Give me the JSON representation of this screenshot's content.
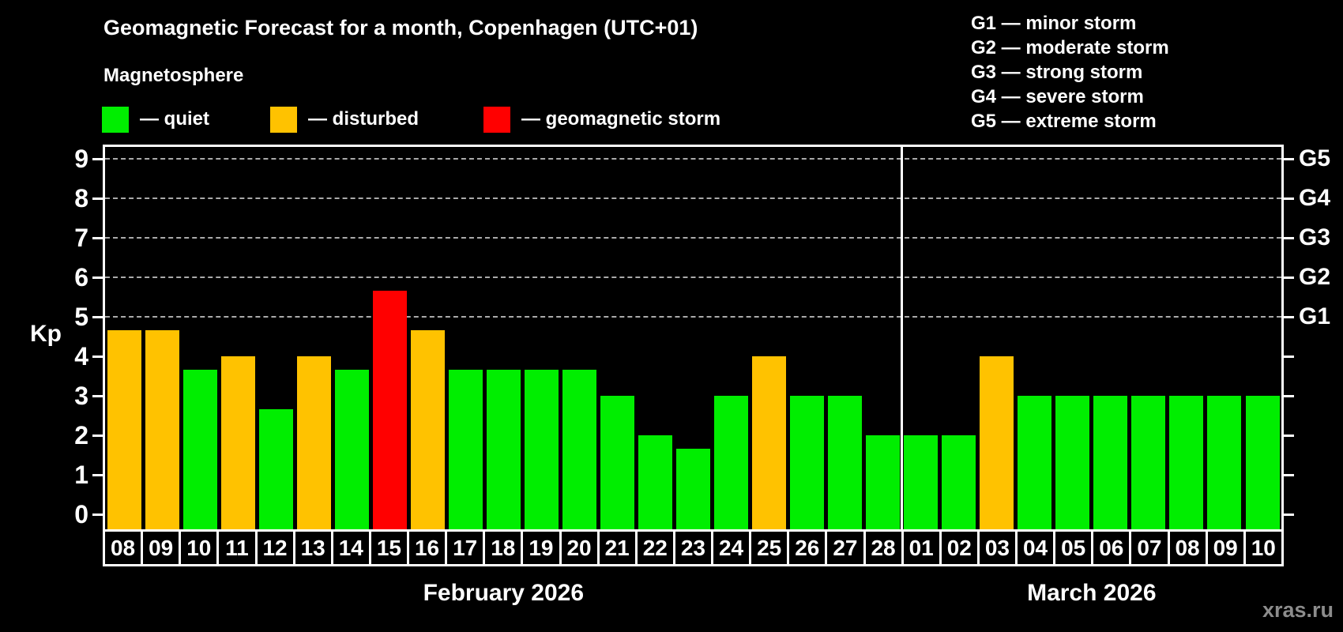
{
  "title": "Geomagnetic Forecast for a month, Copenhagen (UTC+01)",
  "subtitle": "Magnetosphere",
  "legend": {
    "items": [
      {
        "key": "quiet",
        "label": "— quiet"
      },
      {
        "key": "disturbed",
        "label": "— disturbed"
      },
      {
        "key": "storm",
        "label": "— geomagnetic storm"
      }
    ]
  },
  "g_scale_legend": [
    "G1 — minor storm",
    "G2 — moderate storm",
    "G3 — strong storm",
    "G4 — severe storm",
    "G5 — extreme storm"
  ],
  "watermark": "xras.ru",
  "colors": {
    "quiet": "#00ee00",
    "disturbed": "#ffc200",
    "storm": "#ff0000",
    "grid": "#aaaaaa",
    "axis": "#ffffff",
    "watermark": "#8c8c8c"
  },
  "chart_data": {
    "type": "bar",
    "title": "Geomagnetic Forecast for a month, Copenhagen (UTC+01)",
    "ylabel": "Kp",
    "ylim": [
      0,
      9.4
    ],
    "yticks": [
      0,
      1,
      2,
      3,
      4,
      5,
      6,
      7,
      8,
      9
    ],
    "grid_kp": [
      5,
      6,
      7,
      8,
      9
    ],
    "legend_position": "top",
    "grid": "dashed horizontal at Kp 5-9",
    "right_axis": [
      {
        "kp": 5,
        "label": "G1"
      },
      {
        "kp": 6,
        "label": "G2"
      },
      {
        "kp": 7,
        "label": "G3"
      },
      {
        "kp": 8,
        "label": "G4"
      },
      {
        "kp": 9,
        "label": "G5"
      }
    ],
    "months": [
      {
        "label": "February 2026",
        "days": 21
      },
      {
        "label": "March 2026",
        "days": 10
      }
    ],
    "categories": [
      "08",
      "09",
      "10",
      "11",
      "12",
      "13",
      "14",
      "15",
      "16",
      "17",
      "18",
      "19",
      "20",
      "21",
      "22",
      "23",
      "24",
      "25",
      "26",
      "27",
      "28",
      "01",
      "02",
      "03",
      "04",
      "05",
      "06",
      "07",
      "08",
      "09",
      "10"
    ],
    "values": [
      4.67,
      4.67,
      3.67,
      4.0,
      2.67,
      4.0,
      3.67,
      5.67,
      4.67,
      3.67,
      3.67,
      3.67,
      3.67,
      3.0,
      2.0,
      1.67,
      3.0,
      4.0,
      3.0,
      3.0,
      2.0,
      2.0,
      2.0,
      4.0,
      3.0,
      3.0,
      3.0,
      3.0,
      3.0,
      3.0,
      3.0
    ],
    "statuses": [
      "disturbed",
      "disturbed",
      "quiet",
      "disturbed",
      "quiet",
      "disturbed",
      "quiet",
      "storm",
      "disturbed",
      "quiet",
      "quiet",
      "quiet",
      "quiet",
      "quiet",
      "quiet",
      "quiet",
      "quiet",
      "disturbed",
      "quiet",
      "quiet",
      "quiet",
      "quiet",
      "quiet",
      "disturbed",
      "quiet",
      "quiet",
      "quiet",
      "quiet",
      "quiet",
      "quiet",
      "quiet"
    ]
  }
}
